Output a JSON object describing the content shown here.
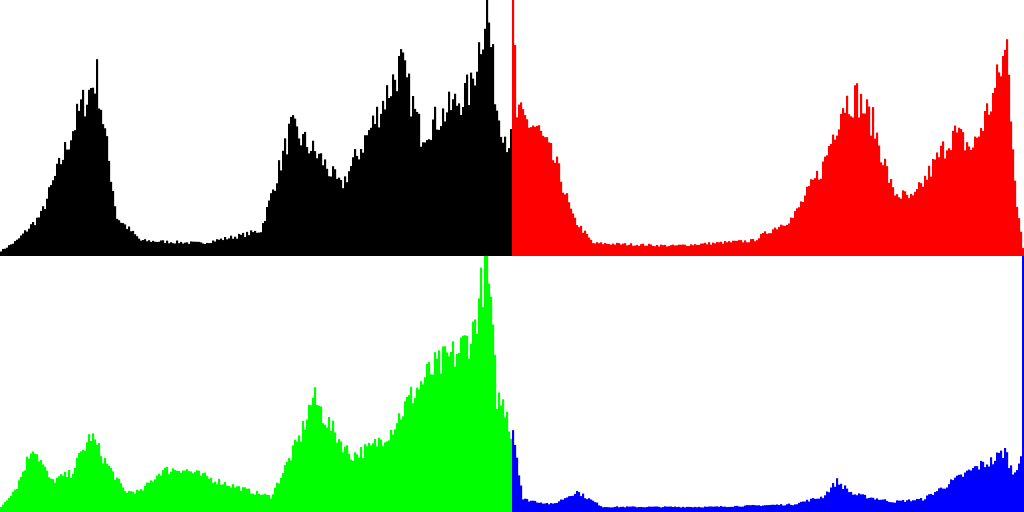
{
  "chart_data": [
    {
      "type": "bar",
      "channel": "luminance",
      "color": "#000000",
      "x_range": [
        0,
        255
      ],
      "y_range": [
        0,
        1
      ],
      "grid": false,
      "bins": 256,
      "peaks": [
        [
          0,
          0.02
        ],
        [
          8,
          0.06
        ],
        [
          20,
          0.16
        ],
        [
          40,
          0.58
        ],
        [
          48,
          0.7
        ],
        [
          58,
          0.15
        ],
        [
          70,
          0.06
        ],
        [
          100,
          0.05
        ],
        [
          120,
          0.08
        ],
        [
          130,
          0.1
        ],
        [
          145,
          0.5
        ],
        [
          160,
          0.38
        ],
        [
          170,
          0.27
        ],
        [
          185,
          0.5
        ],
        [
          200,
          0.75
        ],
        [
          210,
          0.48
        ],
        [
          222,
          0.56
        ],
        [
          235,
          0.65
        ],
        [
          243,
          0.98
        ],
        [
          248,
          0.58
        ],
        [
          253,
          0.45
        ],
        [
          255,
          0.45
        ]
      ]
    },
    {
      "type": "bar",
      "channel": "red",
      "color": "#ff0000",
      "x_range": [
        0,
        255
      ],
      "y_range": [
        0,
        1
      ],
      "grid": false,
      "bins": 256,
      "peaks": [
        [
          0,
          1.0
        ],
        [
          2,
          0.55
        ],
        [
          12,
          0.5
        ],
        [
          22,
          0.35
        ],
        [
          30,
          0.15
        ],
        [
          40,
          0.05
        ],
        [
          80,
          0.04
        ],
        [
          120,
          0.06
        ],
        [
          140,
          0.15
        ],
        [
          155,
          0.35
        ],
        [
          165,
          0.6
        ],
        [
          172,
          0.62
        ],
        [
          180,
          0.52
        ],
        [
          190,
          0.25
        ],
        [
          200,
          0.22
        ],
        [
          210,
          0.35
        ],
        [
          220,
          0.48
        ],
        [
          230,
          0.42
        ],
        [
          240,
          0.62
        ],
        [
          247,
          0.82
        ],
        [
          252,
          0.2
        ],
        [
          255,
          0.03
        ]
      ]
    },
    {
      "type": "bar",
      "channel": "green",
      "color": "#00ff00",
      "x_range": [
        0,
        255
      ],
      "y_range": [
        0,
        1
      ],
      "grid": false,
      "bins": 256,
      "peaks": [
        [
          0,
          0.02
        ],
        [
          8,
          0.1
        ],
        [
          16,
          0.26
        ],
        [
          25,
          0.12
        ],
        [
          35,
          0.15
        ],
        [
          45,
          0.3
        ],
        [
          52,
          0.2
        ],
        [
          62,
          0.08
        ],
        [
          70,
          0.08
        ],
        [
          80,
          0.16
        ],
        [
          90,
          0.17
        ],
        [
          105,
          0.13
        ],
        [
          125,
          0.08
        ],
        [
          135,
          0.06
        ],
        [
          150,
          0.3
        ],
        [
          156,
          0.45
        ],
        [
          165,
          0.33
        ],
        [
          175,
          0.22
        ],
        [
          185,
          0.25
        ],
        [
          195,
          0.32
        ],
        [
          205,
          0.45
        ],
        [
          215,
          0.55
        ],
        [
          228,
          0.62
        ],
        [
          236,
          0.7
        ],
        [
          243,
          0.99
        ],
        [
          248,
          0.45
        ],
        [
          253,
          0.4
        ],
        [
          255,
          0.3
        ]
      ]
    },
    {
      "type": "bar",
      "channel": "blue",
      "color": "#0000ff",
      "x_range": [
        0,
        255
      ],
      "y_range": [
        0,
        1
      ],
      "grid": false,
      "bins": 256,
      "peaks": [
        [
          0,
          0.33
        ],
        [
          5,
          0.05
        ],
        [
          20,
          0.03
        ],
        [
          32,
          0.08
        ],
        [
          36,
          0.06
        ],
        [
          45,
          0.02
        ],
        [
          100,
          0.02
        ],
        [
          140,
          0.03
        ],
        [
          155,
          0.06
        ],
        [
          162,
          0.12
        ],
        [
          170,
          0.07
        ],
        [
          190,
          0.04
        ],
        [
          205,
          0.05
        ],
        [
          220,
          0.12
        ],
        [
          233,
          0.18
        ],
        [
          240,
          0.2
        ],
        [
          246,
          0.24
        ],
        [
          250,
          0.15
        ],
        [
          254,
          0.22
        ],
        [
          255,
          1.0
        ]
      ]
    }
  ]
}
